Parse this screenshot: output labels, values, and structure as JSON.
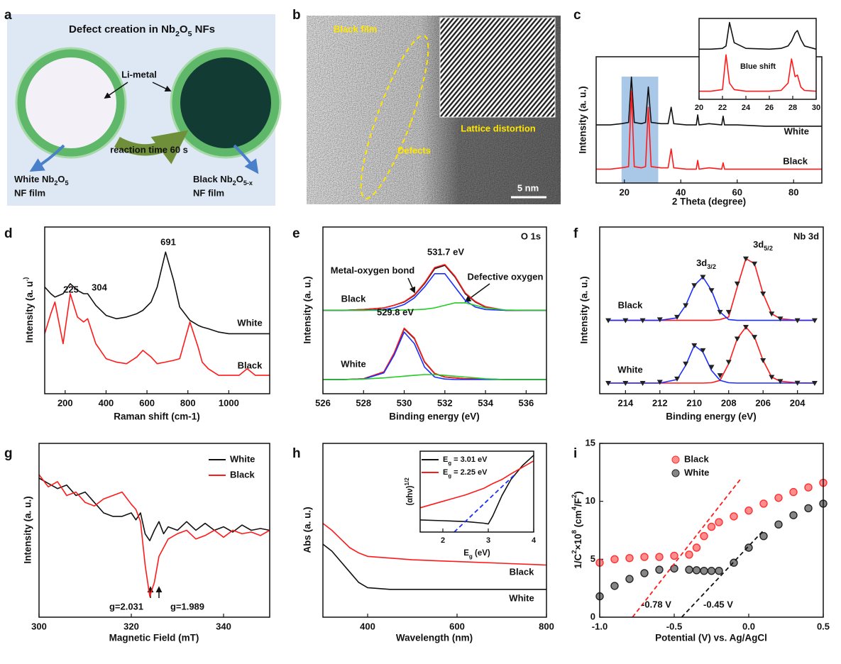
{
  "panel_labels": [
    "a",
    "b",
    "c",
    "d",
    "e",
    "f",
    "g",
    "h",
    "i"
  ],
  "diagram_a": {
    "title": "Defect creation in Nb2O5 NFs",
    "li_metal": "Li-metal",
    "reaction": "reaction time 60 s",
    "white_film": [
      "White Nb2O5",
      "NF film"
    ],
    "black_film": [
      "Black Nb2O5-x",
      "NF film"
    ]
  },
  "image_b": {
    "black_film": "Black film",
    "defects": "Defects",
    "lattice": "Lattice distortion",
    "scale": "5 nm"
  },
  "chart_data": [
    {
      "type": "line",
      "xlabel": "2 Theta (degree)",
      "ylabel": "Intensity (a. u.)",
      "xlim": [
        10,
        90
      ],
      "ylim": [
        0,
        1
      ],
      "xticks": [
        20,
        40,
        60,
        80
      ],
      "highlight_range": [
        19,
        32
      ],
      "highlight_color": "#a9c8e8",
      "x": [
        10,
        15,
        19,
        21.5,
        22.5,
        23.5,
        26,
        27.5,
        28.5,
        29.5,
        33,
        35.5,
        36.6,
        37.5,
        42,
        45.5,
        46,
        46.5,
        50,
        54.5,
        55,
        55.5,
        60,
        70,
        80,
        90
      ],
      "series": [
        {
          "name": "White",
          "color": "#111111",
          "values": [
            0.46,
            0.46,
            0.47,
            0.48,
            0.84,
            0.48,
            0.47,
            0.48,
            0.76,
            0.48,
            0.47,
            0.47,
            0.6,
            0.47,
            0.46,
            0.46,
            0.54,
            0.46,
            0.47,
            0.46,
            0.53,
            0.46,
            0.46,
            0.45,
            0.45,
            0.45
          ]
        },
        {
          "name": "Black",
          "color": "#ff1a1a",
          "values": [
            0.11,
            0.11,
            0.12,
            0.13,
            0.73,
            0.13,
            0.12,
            0.13,
            0.6,
            0.13,
            0.12,
            0.12,
            0.27,
            0.12,
            0.11,
            0.11,
            0.18,
            0.11,
            0.12,
            0.11,
            0.16,
            0.11,
            0.11,
            0.11,
            0.11,
            0.11
          ]
        }
      ],
      "annotations": []
    },
    {
      "type": "line",
      "xlim": [
        20,
        30
      ],
      "ylim": [
        0,
        1
      ],
      "xticks": [
        20,
        22,
        24,
        26,
        28,
        30
      ],
      "x": [
        20,
        21,
        22,
        22.3,
        22.6,
        23,
        24,
        26,
        27,
        27.6,
        27.9,
        28.2,
        28.4,
        28.7,
        29,
        30
      ],
      "series": [
        {
          "color": "#111111",
          "values": [
            0.62,
            0.62,
            0.63,
            0.66,
            0.95,
            0.7,
            0.63,
            0.62,
            0.63,
            0.66,
            0.72,
            0.82,
            0.85,
            0.74,
            0.66,
            0.62
          ]
        },
        {
          "color": "#ff1a1a",
          "values": [
            0.1,
            0.1,
            0.12,
            0.55,
            0.2,
            0.12,
            0.1,
            0.1,
            0.11,
            0.2,
            0.5,
            0.28,
            0.3,
            0.15,
            0.11,
            0.1
          ]
        }
      ],
      "annotations": [
        "Blue shift"
      ]
    },
    {
      "type": "line",
      "xlabel": "Raman shift (cm-1)",
      "ylabel": "Intensity (a. u.)",
      "xlim": [
        100,
        1200
      ],
      "ylim": [
        0,
        1
      ],
      "xticks": [
        200,
        400,
        600,
        800,
        1000
      ],
      "x": [
        100,
        130,
        150,
        190,
        225,
        260,
        290,
        310,
        350,
        400,
        450,
        500,
        550,
        580,
        620,
        650,
        691,
        730,
        760,
        810,
        850,
        870,
        900,
        950,
        1000,
        1050,
        1090,
        1130,
        1200
      ],
      "series": [
        {
          "name": "White",
          "color": "#111111",
          "values": [
            0.64,
            0.6,
            0.58,
            0.6,
            0.66,
            0.62,
            0.6,
            0.6,
            0.53,
            0.47,
            0.45,
            0.46,
            0.48,
            0.5,
            0.55,
            0.64,
            0.85,
            0.68,
            0.52,
            0.44,
            0.41,
            0.4,
            0.39,
            0.37,
            0.36,
            0.36,
            0.36,
            0.36,
            0.36
          ]
        },
        {
          "name": "Black",
          "color": "#ff1a1a",
          "values": [
            0.36,
            0.48,
            0.55,
            0.3,
            0.6,
            0.46,
            0.43,
            0.45,
            0.3,
            0.21,
            0.19,
            0.18,
            0.22,
            0.26,
            0.22,
            0.18,
            0.19,
            0.2,
            0.21,
            0.43,
            0.28,
            0.19,
            0.15,
            0.11,
            0.11,
            0.11,
            0.15,
            0.11,
            0.11
          ]
        }
      ],
      "annotations": [
        "225",
        "304",
        "691"
      ]
    },
    {
      "type": "line",
      "xlabel": "Binding energy (eV)",
      "ylabel": "Intensity (a. u.)",
      "xlim": [
        526,
        537
      ],
      "ylim": [
        0,
        1
      ],
      "xticks": [
        526,
        528,
        530,
        532,
        534,
        536
      ],
      "x": [
        526,
        527,
        528,
        529,
        529.5,
        530,
        530.5,
        531,
        531.5,
        532,
        532.5,
        533,
        533.5,
        534,
        535,
        536,
        537
      ],
      "series": [
        {
          "name": "Black",
          "color": "#111111",
          "values": [
            0.5,
            0.5,
            0.505,
            0.515,
            0.53,
            0.55,
            0.59,
            0.66,
            0.75,
            0.77,
            0.7,
            0.6,
            0.55,
            0.52,
            0.5,
            0.5,
            0.5
          ]
        },
        {
          "color": "#ff1a1a",
          "values": [
            0.5,
            0.5,
            0.505,
            0.515,
            0.53,
            0.552,
            0.593,
            0.665,
            0.757,
            0.775,
            0.705,
            0.605,
            0.553,
            0.522,
            0.5,
            0.5,
            0.5
          ]
        },
        {
          "color": "#1a2eff",
          "values": [
            0.5,
            0.5,
            0.5,
            0.505,
            0.515,
            0.535,
            0.575,
            0.64,
            0.72,
            0.72,
            0.64,
            0.56,
            0.52,
            0.505,
            0.5,
            0.5,
            0.5
          ]
        },
        {
          "color": "#22cc22",
          "values": [
            0.5,
            0.5,
            0.5,
            0.5,
            0.5,
            0.502,
            0.504,
            0.507,
            0.515,
            0.53,
            0.545,
            0.545,
            0.53,
            0.515,
            0.502,
            0.5,
            0.5
          ]
        },
        {
          "name": "White",
          "color": "#111111",
          "values": [
            0.085,
            0.085,
            0.09,
            0.13,
            0.24,
            0.39,
            0.33,
            0.19,
            0.12,
            0.1,
            0.095,
            0.09,
            0.09,
            0.088,
            0.085,
            0.085,
            0.085
          ]
        },
        {
          "color": "#ff1a1a",
          "values": [
            0.085,
            0.085,
            0.09,
            0.132,
            0.243,
            0.393,
            0.334,
            0.193,
            0.122,
            0.101,
            0.095,
            0.09,
            0.09,
            0.088,
            0.085,
            0.085,
            0.085
          ]
        },
        {
          "color": "#1a2eff",
          "values": [
            0.085,
            0.085,
            0.088,
            0.125,
            0.23,
            0.37,
            0.3,
            0.16,
            0.1,
            0.088,
            0.085,
            0.085,
            0.085,
            0.085,
            0.085,
            0.085,
            0.085
          ]
        },
        {
          "color": "#22cc22",
          "values": [
            0.085,
            0.085,
            0.088,
            0.095,
            0.1,
            0.105,
            0.11,
            0.115,
            0.115,
            0.11,
            0.105,
            0.1,
            0.095,
            0.09,
            0.085,
            0.085,
            0.085
          ]
        }
      ],
      "annotations": [
        "O 1s",
        "531.7 eV",
        "Metal-oxygen bond",
        "Defective oxygen",
        "529.8 eV"
      ]
    },
    {
      "type": "line",
      "xlabel": "Binding energy (eV)",
      "ylabel": "Intensity (a. u.)",
      "xlim": [
        215.5,
        202.5
      ],
      "ylim": [
        0,
        1
      ],
      "xticks": [
        214,
        212,
        210,
        208,
        206,
        204
      ],
      "x": [
        215,
        214,
        213,
        212,
        211,
        210.5,
        210,
        209.5,
        209,
        208.5,
        208,
        207.5,
        207,
        206.5,
        206,
        205.5,
        205,
        204,
        203
      ],
      "series": [
        {
          "color": "#ff1a1a",
          "values": [
            0.44,
            0.44,
            0.44,
            0.44,
            0.44,
            0.44,
            0.44,
            0.44,
            0.44,
            0.445,
            0.46,
            0.64,
            0.81,
            0.78,
            0.6,
            0.48,
            0.45,
            0.44,
            0.44
          ]
        },
        {
          "color": "#1a2eff",
          "values": [
            0.44,
            0.44,
            0.44,
            0.44,
            0.455,
            0.53,
            0.65,
            0.7,
            0.62,
            0.49,
            0.445,
            0.44,
            0.44,
            0.44,
            0.44,
            0.44,
            0.44,
            0.44,
            0.44
          ]
        },
        {
          "name": "Black",
          "color": "#222222",
          "marker": "triangle",
          "values": [
            0.44,
            0.44,
            0.44,
            0.445,
            0.46,
            0.53,
            0.65,
            0.7,
            0.62,
            0.49,
            0.49,
            0.66,
            0.81,
            0.78,
            0.6,
            0.48,
            0.45,
            0.44,
            0.44
          ]
        },
        {
          "color": "#ff1a1a",
          "values": [
            0.064,
            0.064,
            0.064,
            0.064,
            0.064,
            0.064,
            0.064,
            0.064,
            0.066,
            0.08,
            0.18,
            0.33,
            0.4,
            0.34,
            0.2,
            0.1,
            0.075,
            0.065,
            0.064
          ]
        },
        {
          "color": "#1a2eff",
          "values": [
            0.064,
            0.064,
            0.064,
            0.064,
            0.085,
            0.17,
            0.29,
            0.25,
            0.14,
            0.08,
            0.066,
            0.064,
            0.064,
            0.064,
            0.064,
            0.064,
            0.064,
            0.064,
            0.064
          ]
        },
        {
          "name": "White",
          "color": "#222222",
          "marker": "triangle",
          "values": [
            0.064,
            0.064,
            0.064,
            0.07,
            0.09,
            0.18,
            0.29,
            0.26,
            0.16,
            0.11,
            0.19,
            0.33,
            0.4,
            0.34,
            0.2,
            0.1,
            0.075,
            0.065,
            0.064
          ]
        }
      ],
      "annotations": [
        "Nb 3d",
        "3d5/2",
        "3d3/2"
      ]
    },
    {
      "type": "line",
      "xlabel": "Magnetic Field (mT)",
      "ylabel": "Intensity (a. u.)",
      "legend": "upper right",
      "xlim": [
        300,
        350
      ],
      "ylim": [
        0,
        1
      ],
      "xticks": [
        300,
        320,
        340
      ],
      "x": [
        300,
        302,
        304,
        306,
        308,
        310,
        312,
        314,
        316,
        318,
        320,
        321,
        322,
        323,
        324,
        325,
        326,
        327,
        328,
        330,
        332,
        334,
        336,
        338,
        340,
        342,
        344,
        346,
        348,
        350
      ],
      "series": [
        {
          "name": "White",
          "color": "#111111",
          "values": [
            0.8,
            0.77,
            0.74,
            0.76,
            0.7,
            0.72,
            0.66,
            0.6,
            0.58,
            0.58,
            0.6,
            0.56,
            0.6,
            0.48,
            0.44,
            0.5,
            0.55,
            0.48,
            0.52,
            0.5,
            0.55,
            0.5,
            0.54,
            0.5,
            0.52,
            0.49,
            0.53,
            0.5,
            0.51,
            0.5
          ]
        },
        {
          "name": "Black",
          "color": "#ff1a1a",
          "values": [
            0.82,
            0.75,
            0.78,
            0.7,
            0.72,
            0.66,
            0.64,
            0.68,
            0.7,
            0.72,
            0.65,
            0.62,
            0.55,
            0.3,
            0.12,
            0.2,
            0.35,
            0.4,
            0.45,
            0.48,
            0.5,
            0.45,
            0.47,
            0.5,
            0.46,
            0.5,
            0.48,
            0.49,
            0.47,
            0.5
          ]
        }
      ],
      "annotations": [
        "g=2.031",
        "g=1.989"
      ]
    },
    {
      "type": "line",
      "xlabel": "Wavelength (nm)",
      "ylabel": "Abs (a. u.)",
      "xlim": [
        300,
        800
      ],
      "ylim": [
        0,
        1
      ],
      "xticks": [
        400,
        600,
        800
      ],
      "x": [
        300,
        320,
        340,
        360,
        380,
        400,
        450,
        500,
        600,
        700,
        800
      ],
      "series": [
        {
          "name": "Black",
          "color": "#ff1a1a",
          "values": [
            0.54,
            0.5,
            0.45,
            0.4,
            0.37,
            0.35,
            0.34,
            0.33,
            0.32,
            0.31,
            0.3
          ]
        },
        {
          "name": "White",
          "color": "#111111",
          "values": [
            0.42,
            0.38,
            0.32,
            0.26,
            0.2,
            0.17,
            0.16,
            0.16,
            0.16,
            0.16,
            0.16
          ]
        }
      ],
      "annotations": []
    },
    {
      "type": "line",
      "xlabel": "Eg (eV)",
      "ylabel": "(αhν)1/2",
      "legend": "upper left",
      "xlim": [
        1.5,
        4
      ],
      "ylim": [
        0,
        1
      ],
      "xticks": [
        2,
        3,
        4
      ],
      "x": [
        1.5,
        2,
        2.5,
        2.9,
        3.0,
        3.1,
        3.3,
        3.5,
        3.75,
        4
      ],
      "series": [
        {
          "name": "Eg = 3.01 eV",
          "color": "#111111",
          "values": [
            0.15,
            0.14,
            0.13,
            0.11,
            0.1,
            0.2,
            0.45,
            0.65,
            0.82,
            0.95
          ]
        },
        {
          "name": "Eg = 2.25 eV",
          "color": "#ff1a1a",
          "values": [
            0.3,
            0.38,
            0.46,
            0.54,
            0.57,
            0.6,
            0.65,
            0.72,
            0.8,
            0.88
          ]
        },
        {
          "color": "#1a2eff",
          "dashed": true,
          "x": [
            2.25,
            3.6
          ],
          "values": [
            0,
            0.72
          ]
        }
      ],
      "annotations": []
    },
    {
      "type": "scatter",
      "xlabel": "Potential (V) vs. Ag/AgCl",
      "ylabel": "1/C2×108 (cm4/F2)",
      "legend": "upper left",
      "xlim": [
        -1,
        0.5
      ],
      "ylim": [
        0,
        15
      ],
      "xticks": [
        {
          "value": -1,
          "label": "-1.0"
        },
        {
          "value": -0.5,
          "label": "-0.5"
        },
        {
          "value": 0,
          "label": "0.0"
        },
        {
          "value": 0.5,
          "label": "0.5"
        }
      ],
      "yticks": [
        0,
        5,
        10,
        15
      ],
      "x": [
        -1,
        -0.9,
        -0.8,
        -0.7,
        -0.6,
        -0.5,
        -0.4,
        -0.35,
        -0.3,
        -0.25,
        -0.2,
        -0.1,
        0,
        0.1,
        0.2,
        0.3,
        0.4,
        0.5
      ],
      "series": [
        {
          "name": "Black",
          "color": "#ff3030",
          "values": [
            4.7,
            5.0,
            5.1,
            5.2,
            5.2,
            5.3,
            5.4,
            6.0,
            7.0,
            7.8,
            8.2,
            8.7,
            9.2,
            9.8,
            10.3,
            10.8,
            11.2,
            11.6
          ]
        },
        {
          "name": "White",
          "color": "#222222",
          "values": [
            1.8,
            2.7,
            3.3,
            3.8,
            4.1,
            4.2,
            4.1,
            4.05,
            4.0,
            4.0,
            4.0,
            4.7,
            6.0,
            7.0,
            8.0,
            8.8,
            9.4,
            9.8
          ]
        },
        {
          "color": "#ff1a1a",
          "dashed": true,
          "marker": "none",
          "x": [
            -0.78,
            -0.05
          ],
          "values": [
            0,
            12
          ]
        },
        {
          "color": "#111111",
          "dashed": true,
          "marker": "none",
          "x": [
            -0.45,
            0.1
          ],
          "values": [
            0,
            7.5
          ]
        }
      ],
      "annotations": [
        "-0.78 V",
        "-0.45 V"
      ]
    }
  ]
}
